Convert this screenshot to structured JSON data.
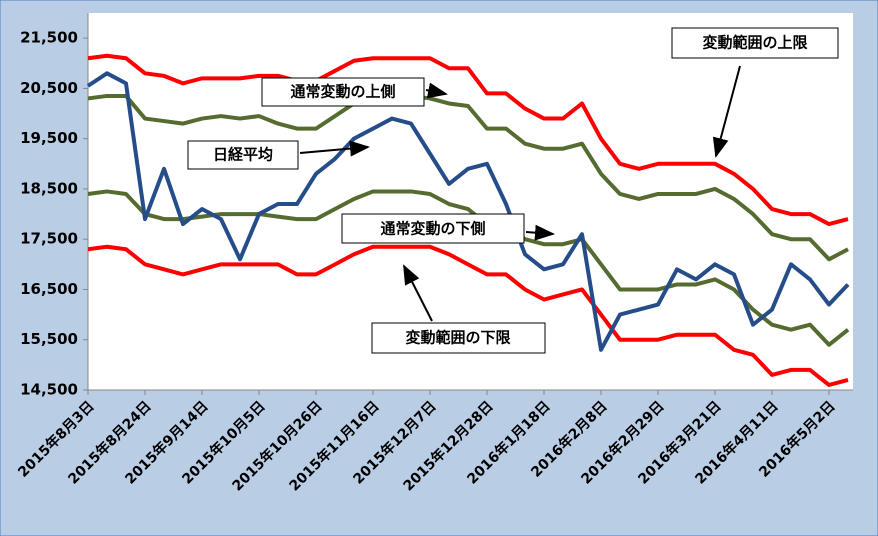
{
  "chart_data": {
    "type": "line",
    "categories": [
      "2015年8月3日",
      null,
      null,
      "2015年8月24日",
      null,
      null,
      "2015年9月14日",
      null,
      null,
      "2015年10月5日",
      null,
      null,
      "2015年10月26日",
      null,
      null,
      "2015年11月16日",
      null,
      null,
      "2015年12月7日",
      null,
      null,
      "2015年12月28日",
      null,
      null,
      "2016年1月18日",
      null,
      null,
      "2016年2月8日",
      null,
      null,
      "2016年2月29日",
      null,
      null,
      "2016年3月21日",
      null,
      null,
      "2016年4月11日",
      null,
      null,
      "2016年5月2日",
      null
    ],
    "series": [
      {
        "color": "#ff0000",
        "values": [
          21100,
          21150,
          21100,
          20800,
          20750,
          20600,
          20700,
          20700,
          20700,
          20750,
          20750,
          20650,
          20650,
          20850,
          21050,
          21100,
          21100,
          21100,
          21100,
          20900,
          20900,
          20400,
          20400,
          20100,
          19900,
          19900,
          20200,
          19500,
          19000,
          18900,
          19000,
          19000,
          19000,
          19000,
          18800,
          18500,
          18100,
          18000,
          18000,
          17800,
          17900
        ]
      },
      {
        "color": "#556b2f",
        "values": [
          20300,
          20350,
          20350,
          19900,
          19850,
          19800,
          19900,
          19950,
          19900,
          19950,
          19800,
          19700,
          19700,
          19950,
          20200,
          20350,
          20350,
          20350,
          20300,
          20200,
          20150,
          19700,
          19700,
          19400,
          19300,
          19300,
          19400,
          18800,
          18400,
          18300,
          18400,
          18400,
          18400,
          18500,
          18300,
          18000,
          17600,
          17500,
          17500,
          17100,
          17300
        ]
      },
      {
        "color": "#556b2f",
        "values": [
          18400,
          18450,
          18400,
          18000,
          17900,
          17900,
          17950,
          18000,
          18000,
          18000,
          17950,
          17900,
          17900,
          18100,
          18300,
          18450,
          18450,
          18450,
          18400,
          18200,
          18100,
          17800,
          17800,
          17500,
          17400,
          17400,
          17500,
          17000,
          16500,
          16500,
          16500,
          16600,
          16600,
          16700,
          16500,
          16100,
          15800,
          15700,
          15800,
          15400,
          15700
        ]
      },
      {
        "color": "#ff0000",
        "values": [
          17300,
          17350,
          17300,
          17000,
          16900,
          16800,
          16900,
          17000,
          17000,
          17000,
          17000,
          16800,
          16800,
          17000,
          17200,
          17350,
          17350,
          17350,
          17350,
          17200,
          17000,
          16800,
          16800,
          16500,
          16300,
          16400,
          16500,
          16000,
          15500,
          15500,
          15500,
          15600,
          15600,
          15600,
          15300,
          15200,
          14800,
          14900,
          14900,
          14600,
          14700
        ]
      },
      {
        "color": "#254d8a",
        "values": [
          20550,
          20800,
          20600,
          17900,
          18900,
          17800,
          18100,
          17900,
          17100,
          18000,
          18200,
          18200,
          18800,
          19100,
          19500,
          19700,
          19900,
          19800,
          19200,
          18600,
          18900,
          19000,
          18200,
          17200,
          16900,
          17000,
          17600,
          15300,
          16000,
          16100,
          16200,
          16900,
          16700,
          17000,
          16800,
          15800,
          16100,
          17000,
          16700,
          16200,
          16600
        ]
      }
    ],
    "ylim": [
      14500,
      22000
    ],
    "yticks": [
      {
        "value": 14500,
        "label": "14,500"
      },
      {
        "value": 15500,
        "label": "15,500"
      },
      {
        "value": 16500,
        "label": "16,500"
      },
      {
        "value": 17500,
        "label": "17,500"
      },
      {
        "value": 18500,
        "label": "18,500"
      },
      {
        "value": 19500,
        "label": "19,500"
      },
      {
        "value": 20500,
        "label": "20,500"
      },
      {
        "value": 21500,
        "label": "21,500"
      }
    ],
    "annotations": [
      "変動範囲の上限",
      "通常変動の上側",
      "日経平均",
      "通常変動の下側",
      "変動範囲の下限"
    ]
  }
}
